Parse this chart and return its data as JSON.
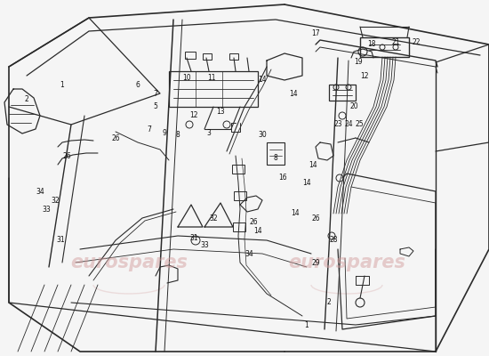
{
  "background_color": "#f5f5f5",
  "watermark_text": "eurospares",
  "watermark_color": "#d4a0a0",
  "line_color": "#2a2a2a",
  "line_width": 0.8,
  "label_fontsize": 5.5,
  "label_color": "#111111",
  "fig_width": 5.5,
  "fig_height": 4.0,
  "dpi": 100
}
